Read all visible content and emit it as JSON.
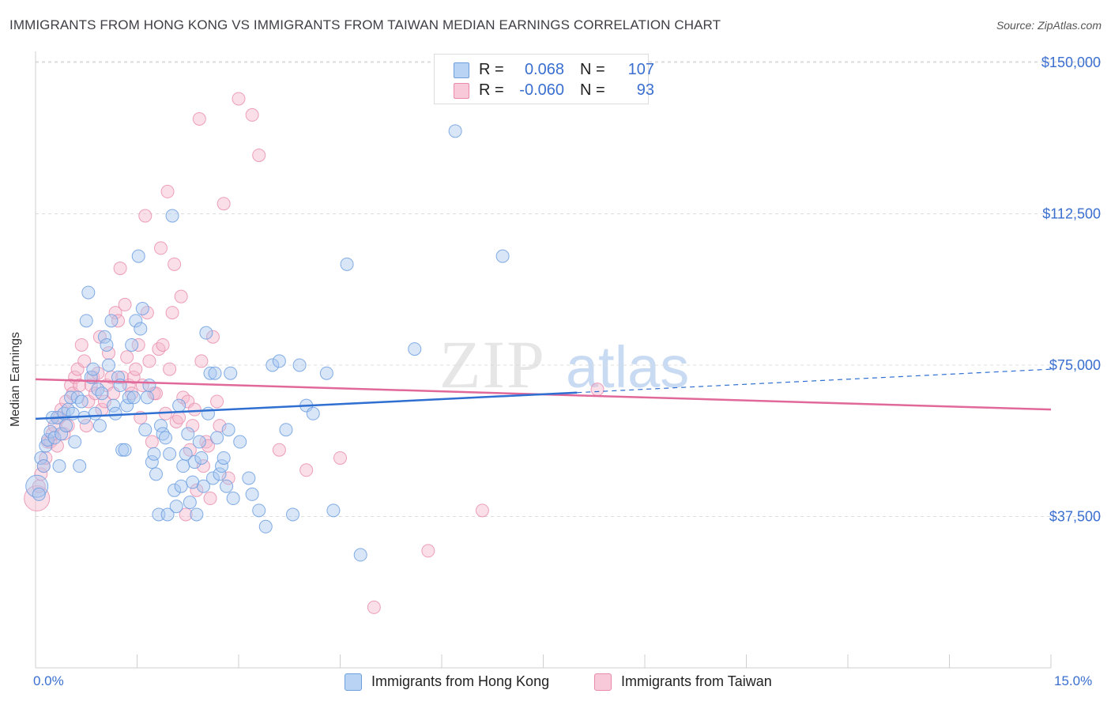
{
  "title": "IMMIGRANTS FROM HONG KONG VS IMMIGRANTS FROM TAIWAN MEDIAN EARNINGS CORRELATION CHART",
  "source": "Source: ZipAtlas.com",
  "watermark": {
    "zip": "ZIP",
    "atlas": "atlas"
  },
  "legend": {
    "rows": [
      {
        "r_label": "R =",
        "r_value": "0.068",
        "n_label": "N =",
        "n_value": "107",
        "color": "#a8c8f0"
      },
      {
        "r_label": "R =",
        "r_value": "-0.060",
        "n_label": "N =",
        "n_value": "93",
        "color": "#f4b8cc"
      }
    ]
  },
  "bottom_legend": {
    "series1": "Immigrants from Hong Kong",
    "series2": "Immigrants from Taiwan"
  },
  "chart_data": {
    "type": "scatter",
    "title": "IMMIGRANTS FROM HONG KONG VS IMMIGRANTS FROM TAIWAN MEDIAN EARNINGS CORRELATION CHART",
    "xlabel": "",
    "ylabel": "Median Earnings",
    "xlim": [
      0,
      15
    ],
    "ylim": [
      0,
      155000
    ],
    "x_tick_labels": [
      "0.0%",
      "15.0%"
    ],
    "y_ticks": [
      37500,
      75000,
      112500,
      150000
    ],
    "y_tick_labels": [
      "$37,500",
      "$75,000",
      "$112,500",
      "$150,000"
    ],
    "colors": {
      "hk_fill": "#a8c8f0",
      "hk_stroke": "#6d9fe0",
      "hk_line": "#2e6fd1",
      "tw_fill": "#f4b8cc",
      "tw_stroke": "#e98aab",
      "tw_line": "#e0699a",
      "tick_text": "#3a6fd0",
      "grid": "#dcdcdc"
    },
    "series": [
      {
        "name": "Immigrants from Hong Kong",
        "R": 0.068,
        "N": 107,
        "trend": {
          "x": [
            0.0,
            8.0
          ],
          "y": [
            61700,
            68200
          ],
          "dashed_to": [
            15.0,
            74000
          ]
        },
        "points": [
          [
            0.02,
            45000
          ],
          [
            0.05,
            43000
          ],
          [
            0.08,
            52000
          ],
          [
            0.12,
            50000
          ],
          [
            0.15,
            55000
          ],
          [
            0.18,
            56500
          ],
          [
            0.22,
            58500
          ],
          [
            0.25,
            62000
          ],
          [
            0.28,
            57000
          ],
          [
            0.32,
            62000
          ],
          [
            0.35,
            50000
          ],
          [
            0.38,
            58000
          ],
          [
            0.42,
            63000
          ],
          [
            0.45,
            60000
          ],
          [
            0.48,
            64000
          ],
          [
            0.52,
            67000
          ],
          [
            0.55,
            63000
          ],
          [
            0.58,
            56000
          ],
          [
            0.62,
            67000
          ],
          [
            0.65,
            50000
          ],
          [
            0.68,
            66000
          ],
          [
            0.72,
            62000
          ],
          [
            0.75,
            86000
          ],
          [
            0.78,
            93000
          ],
          [
            0.82,
            72000
          ],
          [
            0.85,
            74000
          ],
          [
            0.88,
            63000
          ],
          [
            0.92,
            69000
          ],
          [
            0.95,
            60000
          ],
          [
            0.98,
            68000
          ],
          [
            1.02,
            82000
          ],
          [
            1.05,
            80000
          ],
          [
            1.08,
            75000
          ],
          [
            1.12,
            86000
          ],
          [
            1.15,
            65000
          ],
          [
            1.18,
            63000
          ],
          [
            1.22,
            72000
          ],
          [
            1.25,
            70000
          ],
          [
            1.28,
            54000
          ],
          [
            1.32,
            54000
          ],
          [
            1.35,
            65000
          ],
          [
            1.38,
            67000
          ],
          [
            1.42,
            80000
          ],
          [
            1.45,
            67000
          ],
          [
            1.48,
            86000
          ],
          [
            1.52,
            102000
          ],
          [
            1.55,
            84000
          ],
          [
            1.58,
            89000
          ],
          [
            1.62,
            59000
          ],
          [
            1.65,
            67000
          ],
          [
            1.68,
            70000
          ],
          [
            1.72,
            51000
          ],
          [
            1.75,
            53000
          ],
          [
            1.78,
            48000
          ],
          [
            1.82,
            38000
          ],
          [
            1.85,
            60000
          ],
          [
            1.88,
            58000
          ],
          [
            1.92,
            57000
          ],
          [
            1.95,
            38000
          ],
          [
            1.98,
            53000
          ],
          [
            2.02,
            112000
          ],
          [
            2.05,
            44000
          ],
          [
            2.08,
            40000
          ],
          [
            2.12,
            65000
          ],
          [
            2.15,
            45000
          ],
          [
            2.18,
            50000
          ],
          [
            2.22,
            53000
          ],
          [
            2.25,
            58000
          ],
          [
            2.28,
            41000
          ],
          [
            2.32,
            46000
          ],
          [
            2.35,
            51000
          ],
          [
            2.38,
            38000
          ],
          [
            2.42,
            56000
          ],
          [
            2.45,
            52000
          ],
          [
            2.48,
            45000
          ],
          [
            2.52,
            83000
          ],
          [
            2.55,
            63000
          ],
          [
            2.58,
            73000
          ],
          [
            2.62,
            47000
          ],
          [
            2.65,
            73000
          ],
          [
            2.68,
            57000
          ],
          [
            2.72,
            48000
          ],
          [
            2.75,
            50000
          ],
          [
            2.78,
            52000
          ],
          [
            2.82,
            45000
          ],
          [
            2.85,
            59000
          ],
          [
            2.88,
            73000
          ],
          [
            2.92,
            42000
          ],
          [
            3.02,
            56000
          ],
          [
            3.15,
            47000
          ],
          [
            3.2,
            43000
          ],
          [
            3.3,
            39000
          ],
          [
            3.4,
            35000
          ],
          [
            3.5,
            75000
          ],
          [
            3.6,
            76000
          ],
          [
            3.7,
            59000
          ],
          [
            3.8,
            38000
          ],
          [
            3.9,
            75000
          ],
          [
            4.0,
            65000
          ],
          [
            4.1,
            63000
          ],
          [
            4.3,
            73000
          ],
          [
            4.4,
            39000
          ],
          [
            4.6,
            100000
          ],
          [
            4.8,
            28000
          ],
          [
            5.6,
            79000
          ],
          [
            6.2,
            133000
          ],
          [
            6.9,
            102000
          ]
        ]
      },
      {
        "name": "Immigrants from Taiwan",
        "R": -0.06,
        "N": 93,
        "trend": {
          "x": [
            0.0,
            15.0
          ],
          "y": [
            71500,
            64000
          ]
        },
        "points": [
          [
            0.02,
            42000
          ],
          [
            0.05,
            45000
          ],
          [
            0.08,
            48000
          ],
          [
            0.12,
            50000
          ],
          [
            0.15,
            52000
          ],
          [
            0.18,
            56000
          ],
          [
            0.22,
            56000
          ],
          [
            0.25,
            58000
          ],
          [
            0.28,
            60000
          ],
          [
            0.32,
            55000
          ],
          [
            0.35,
            62000
          ],
          [
            0.38,
            64000
          ],
          [
            0.42,
            58000
          ],
          [
            0.45,
            66000
          ],
          [
            0.48,
            60000
          ],
          [
            0.52,
            70000
          ],
          [
            0.55,
            68000
          ],
          [
            0.58,
            72000
          ],
          [
            0.62,
            74000
          ],
          [
            0.65,
            70000
          ],
          [
            0.68,
            80000
          ],
          [
            0.72,
            76000
          ],
          [
            0.75,
            60000
          ],
          [
            0.78,
            66000
          ],
          [
            0.82,
            70000
          ],
          [
            0.85,
            72000
          ],
          [
            0.88,
            68000
          ],
          [
            0.92,
            73000
          ],
          [
            0.95,
            82000
          ],
          [
            0.98,
            64000
          ],
          [
            1.02,
            66000
          ],
          [
            1.05,
            70000
          ],
          [
            1.08,
            78000
          ],
          [
            1.12,
            72000
          ],
          [
            1.15,
            68000
          ],
          [
            1.18,
            88000
          ],
          [
            1.22,
            86000
          ],
          [
            1.25,
            99000
          ],
          [
            1.28,
            72000
          ],
          [
            1.32,
            90000
          ],
          [
            1.35,
            77000
          ],
          [
            1.38,
            70000
          ],
          [
            1.42,
            68000
          ],
          [
            1.45,
            72000
          ],
          [
            1.48,
            74000
          ],
          [
            1.52,
            80000
          ],
          [
            1.55,
            62000
          ],
          [
            1.58,
            70000
          ],
          [
            1.62,
            112000
          ],
          [
            1.65,
            88000
          ],
          [
            1.68,
            76000
          ],
          [
            1.72,
            56000
          ],
          [
            1.75,
            68000
          ],
          [
            1.78,
            68000
          ],
          [
            1.82,
            79000
          ],
          [
            1.85,
            104000
          ],
          [
            1.88,
            80000
          ],
          [
            1.92,
            63000
          ],
          [
            1.95,
            118000
          ],
          [
            1.98,
            74000
          ],
          [
            2.02,
            88000
          ],
          [
            2.05,
            100000
          ],
          [
            2.08,
            61000
          ],
          [
            2.12,
            62000
          ],
          [
            2.15,
            92000
          ],
          [
            2.18,
            67000
          ],
          [
            2.22,
            38000
          ],
          [
            2.25,
            66000
          ],
          [
            2.28,
            54000
          ],
          [
            2.32,
            60000
          ],
          [
            2.35,
            64000
          ],
          [
            2.38,
            44000
          ],
          [
            2.42,
            136000
          ],
          [
            2.45,
            76000
          ],
          [
            2.48,
            50000
          ],
          [
            2.52,
            56000
          ],
          [
            2.55,
            55000
          ],
          [
            2.58,
            42000
          ],
          [
            2.62,
            82000
          ],
          [
            2.68,
            66000
          ],
          [
            2.72,
            60000
          ],
          [
            2.78,
            115000
          ],
          [
            2.85,
            47000
          ],
          [
            3.0,
            141000
          ],
          [
            3.2,
            137000
          ],
          [
            3.3,
            127000
          ],
          [
            3.6,
            54000
          ],
          [
            4.0,
            49000
          ],
          [
            4.5,
            52000
          ],
          [
            5.0,
            15000
          ],
          [
            5.8,
            29000
          ],
          [
            6.6,
            39000
          ],
          [
            8.3,
            69000
          ]
        ]
      }
    ]
  }
}
